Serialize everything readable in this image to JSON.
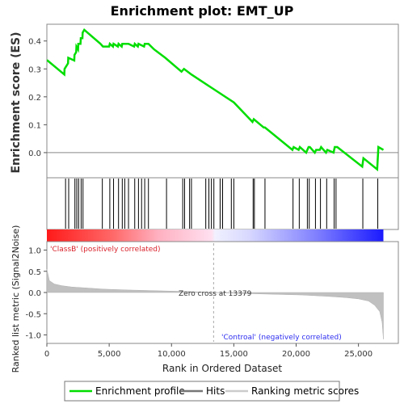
{
  "chart_data": {
    "type": "line",
    "title": "Enrichment plot: EMT_UP",
    "xlabel": "Rank in Ordered Dataset",
    "top_panel": {
      "ylabel": "Enrichment score (ES)",
      "ylim": [
        -0.09,
        0.46
      ],
      "yticks": [
        "0.0",
        "0.1",
        "0.2",
        "0.3",
        "0.4"
      ],
      "ytick_values": [
        0.0,
        0.1,
        0.2,
        0.3,
        0.4
      ],
      "series": [
        {
          "name": "Enrichment profile",
          "color": "#00dd00",
          "x": [
            0,
            50,
            1400,
            1420,
            1700,
            1720,
            2200,
            2220,
            2350,
            2370,
            2500,
            2520,
            2700,
            2720,
            2850,
            2870,
            3000,
            4300,
            4500,
            5000,
            5050,
            5300,
            5350,
            5700,
            5750,
            6000,
            6050,
            6200,
            6250,
            6500,
            6550,
            7000,
            7050,
            7300,
            7350,
            7800,
            7850,
            8100,
            8150,
            8600,
            9500,
            10800,
            11000,
            11300,
            11600,
            13300,
            15000,
            16500,
            16600,
            17400,
            17500,
            19700,
            19800,
            20200,
            20300,
            20800,
            21000,
            21100,
            21500,
            21600,
            21900,
            22000,
            22400,
            22500,
            23000,
            23100,
            23300,
            25300,
            25400,
            26500,
            26600,
            27000
          ],
          "y": [
            0.33,
            0.33,
            0.28,
            0.3,
            0.32,
            0.34,
            0.33,
            0.35,
            0.36,
            0.38,
            0.37,
            0.39,
            0.39,
            0.41,
            0.41,
            0.43,
            0.44,
            0.39,
            0.38,
            0.38,
            0.39,
            0.38,
            0.39,
            0.38,
            0.39,
            0.38,
            0.39,
            0.39,
            0.39,
            0.39,
            0.39,
            0.38,
            0.39,
            0.38,
            0.39,
            0.38,
            0.39,
            0.39,
            0.39,
            0.37,
            0.34,
            0.29,
            0.3,
            0.29,
            0.28,
            0.23,
            0.18,
            0.11,
            0.12,
            0.09,
            0.09,
            0.01,
            0.02,
            0.01,
            0.02,
            0.0,
            0.02,
            0.02,
            0.0,
            0.01,
            0.01,
            0.02,
            0.0,
            0.01,
            0.0,
            0.02,
            0.02,
            -0.05,
            -0.02,
            -0.06,
            0.02,
            0.01
          ]
        }
      ]
    },
    "hits": {
      "name": "Hits",
      "positions": [
        1500,
        1750,
        2250,
        2400,
        2550,
        2750,
        2900,
        4450,
        5050,
        5350,
        5750,
        6050,
        6250,
        6550,
        7050,
        7350,
        7600,
        7850,
        8150,
        9600,
        10900,
        11050,
        11450,
        11600,
        12750,
        13000,
        13200,
        13400,
        13900,
        14100,
        14800,
        15000,
        16550,
        16650,
        17500,
        19750,
        20250,
        20900,
        21050,
        21550,
        21950,
        22450,
        23050,
        23200,
        25350,
        26550
      ]
    },
    "ranked_metric": {
      "name": "Ranking metric scores",
      "ylabel": "Ranked list metric (Signal2Noise)",
      "ylim": [
        -1.2,
        1.2
      ],
      "yticks": [
        "1.0",
        "0.5",
        "0.0",
        "-0.5",
        "-1.0"
      ],
      "ytick_values": [
        1.0,
        0.5,
        0.0,
        -0.5,
        -1.0
      ],
      "x": [
        0,
        200,
        600,
        1200,
        2000,
        3000,
        4500,
        6500,
        9000,
        11500,
        13379,
        15500,
        18000,
        20500,
        22500,
        24000,
        25000,
        25800,
        26300,
        26700,
        26900,
        27000
      ],
      "y": [
        0.55,
        0.28,
        0.2,
        0.16,
        0.13,
        0.11,
        0.08,
        0.06,
        0.04,
        0.02,
        0.0,
        -0.02,
        -0.04,
        -0.06,
        -0.09,
        -0.12,
        -0.15,
        -0.2,
        -0.3,
        -0.45,
        -0.7,
        -1.1
      ]
    },
    "xlim": [
      0,
      28200
    ],
    "xticks": [
      "0",
      "5,000",
      "10,000",
      "15,000",
      "20,000",
      "25,000"
    ],
    "xtick_values": [
      0,
      5000,
      10000,
      15000,
      20000,
      25000
    ],
    "annotations": {
      "pos_label": "'ClassB' (positively correlated)",
      "neg_label": "'Controal' (negatively correlated)",
      "zero_cross": "Zero cross at 13379",
      "zero_cross_value": 13379
    },
    "legend": [
      "Enrichment profile",
      "Hits",
      "Ranking metric scores"
    ],
    "colors": {
      "profile": "#00dd00",
      "hit": "#000000",
      "metric": "#c0c0c0",
      "pos": "#ff0000",
      "neg": "#0000ff",
      "frame": "#888888"
    }
  }
}
